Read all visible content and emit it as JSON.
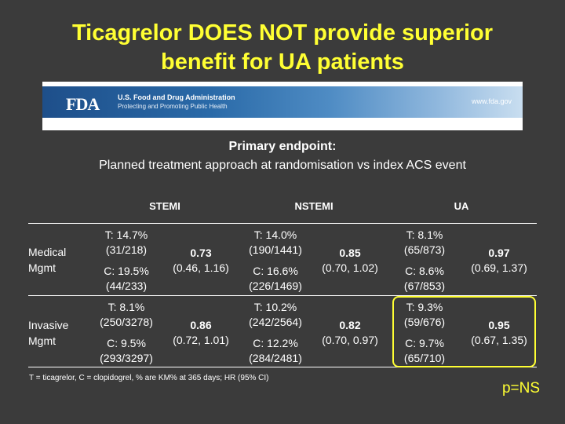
{
  "title_line1": "Ticagrelor DOES NOT provide superior",
  "title_line2": "benefit for UA patients",
  "banner": {
    "logo": "FDA",
    "agency": "U.S. Food and Drug Administration",
    "tagline": "Protecting and Promoting Public Health",
    "url": "www.fda.gov"
  },
  "endpoint": {
    "heading": "Primary endpoint:",
    "subtitle": "Planned treatment approach at randomisation vs index ACS event"
  },
  "columns": [
    "STEMI",
    "NSTEMI",
    "UA"
  ],
  "rows": [
    {
      "label_line1": "Medical",
      "label_line2": "Mgmt",
      "cells": [
        {
          "t_line1": "T: 14.7%",
          "t_line2": "(31/218)",
          "c_line1": "C: 19.5%",
          "c_line2": "(44/233)",
          "hr": "0.73",
          "ci": "(0.46, 1.16)"
        },
        {
          "t_line1": "T: 14.0%",
          "t_line2": "(190/1441)",
          "c_line1": "C: 16.6%",
          "c_line2": "(226/1469)",
          "hr": "0.85",
          "ci": "(0.70, 1.02)"
        },
        {
          "t_line1": "T: 8.1%",
          "t_line2": "(65/873)",
          "c_line1": "C: 8.6%",
          "c_line2": "(67/853)",
          "hr": "0.97",
          "ci": "(0.69, 1.37)"
        }
      ]
    },
    {
      "label_line1": "Invasive",
      "label_line2": "Mgmt",
      "cells": [
        {
          "t_line1": "T: 8.1%",
          "t_line2": "(250/3278)",
          "c_line1": "C: 9.5%",
          "c_line2": "(293/3297)",
          "hr": "0.86",
          "ci": "(0.72, 1.01)"
        },
        {
          "t_line1": "T: 10.2%",
          "t_line2": "(242/2564)",
          "c_line1": "C: 12.2%",
          "c_line2": "(284/2481)",
          "hr": "0.82",
          "ci": "(0.70, 0.97)"
        },
        {
          "t_line1": "T: 9.3%",
          "t_line2": "(59/676)",
          "c_line1": "C: 9.7%",
          "c_line2": "(65/710)",
          "hr": "0.95",
          "ci": "(0.67, 1.35)"
        }
      ]
    }
  ],
  "footnote": "T = ticagrelor, C = clopidogrel, % are KM% at 365 days; HR (95% CI)",
  "conclusion": "p=NS",
  "colors": {
    "background": "#3b3b3b",
    "accent": "#ffff33",
    "text": "#ffffff"
  }
}
